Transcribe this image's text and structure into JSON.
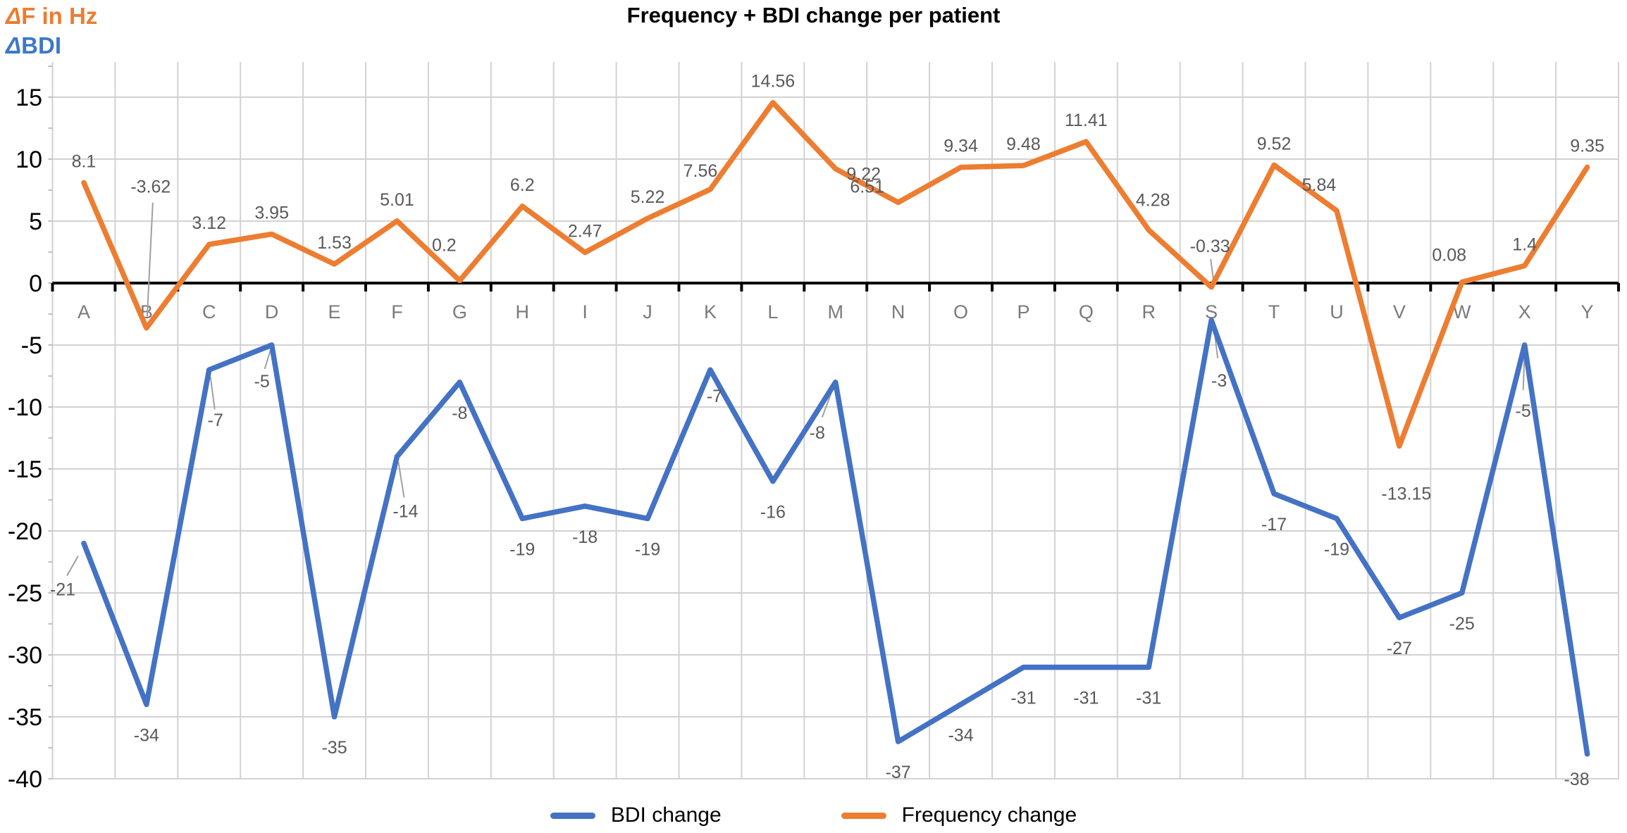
{
  "title": "Frequency + BDI change per patient",
  "header": {
    "freq_axis": {
      "delta": "Δ",
      "text": "F in Hz"
    },
    "bdi_axis": {
      "delta": "Δ",
      "text": "BDI"
    }
  },
  "legend": [
    {
      "label": "BDI change",
      "color": "#4472C4"
    },
    {
      "label": "Frequency change",
      "color": "#ED7D31"
    }
  ],
  "colors": {
    "bdi_line": "#4472C4",
    "frequency_line": "#ED7D31",
    "data_label": "#595959",
    "category_label": "#7A7A7A",
    "gridline": "#D2D2D2",
    "axis": "#000000",
    "leader": "#A0A0A0"
  },
  "chart_data": {
    "type": "line",
    "title": "Frequency + BDI change per patient",
    "categories": [
      "A",
      "B",
      "C",
      "D",
      "E",
      "F",
      "G",
      "H",
      "I",
      "J",
      "K",
      "L",
      "M",
      "N",
      "O",
      "P",
      "Q",
      "R",
      "S",
      "T",
      "U",
      "V",
      "W",
      "X",
      "Y"
    ],
    "series": [
      {
        "name": "BDI change",
        "color": "#4472C4",
        "values": [
          -21,
          -34,
          -7,
          -5,
          -35,
          -14,
          -8,
          -19,
          -18,
          -19,
          -7,
          -16,
          -8,
          -37,
          -34,
          -31,
          -31,
          -31,
          -3,
          -17,
          -19,
          -27,
          -25,
          -5,
          -38
        ]
      },
      {
        "name": "Frequency change",
        "color": "#ED7D31",
        "values": [
          8.1,
          -3.62,
          3.12,
          3.95,
          1.53,
          5.01,
          0.2,
          6.2,
          2.47,
          5.22,
          7.56,
          14.56,
          9.22,
          6.51,
          9.34,
          9.48,
          11.41,
          4.28,
          -0.33,
          9.52,
          5.84,
          -13.15,
          0.08,
          1.4,
          9.35
        ]
      }
    ],
    "y_axis": {
      "ticks": [
        15,
        10,
        5,
        0,
        -5,
        -10,
        -15,
        -20,
        -25,
        -30,
        -35,
        -40
      ],
      "min": -40,
      "max": 17.5,
      "gridline_step": 5
    },
    "x_axis_labels_position": "below-zero-line",
    "data_labels": true,
    "grid": true,
    "legend_position": "bottom"
  }
}
